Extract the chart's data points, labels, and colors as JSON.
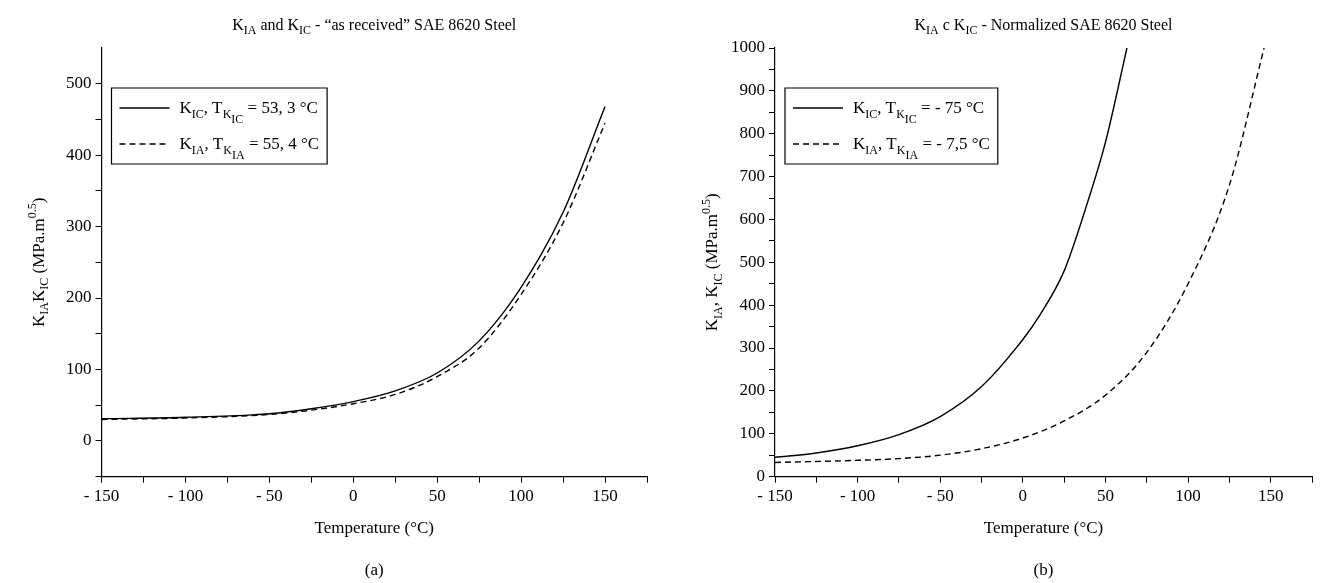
{
  "chart_data": [
    {
      "type": "line",
      "title": "K$_{IA}$ and K$_{IC}$ - “as received” SAE 8620 Steel",
      "xlabel": "Temperature (°C)",
      "ylabel": "K$_{IA}$K$_{IC}$ (MPa.m$^{0.5}$)",
      "annotations": [
        "(a)"
      ],
      "xlim": [
        -150,
        175
      ],
      "ylim": [
        -50,
        550
      ],
      "xticks": [
        {
          "value": -150,
          "label": "- 150"
        },
        {
          "value": -125,
          "label": null
        },
        {
          "value": -100,
          "label": "- 100"
        },
        {
          "value": -75,
          "label": null
        },
        {
          "value": -50,
          "label": "- 50"
        },
        {
          "value": -25,
          "label": null
        },
        0,
        {
          "value": 25,
          "label": null
        },
        50,
        {
          "value": 75,
          "label": null
        },
        100,
        {
          "value": 125,
          "label": null
        },
        150,
        {
          "value": 175,
          "label": null
        }
      ],
      "yticks": [
        {
          "value": -50,
          "label": null
        },
        0,
        {
          "value": 50,
          "label": null
        },
        100,
        {
          "value": 150,
          "label": null
        },
        200,
        {
          "value": 250,
          "label": null
        },
        300,
        {
          "value": 350,
          "label": null
        },
        400,
        {
          "value": 450,
          "label": null
        },
        500
      ],
      "legend": "top left",
      "grid": false,
      "marker": "none",
      "series": [
        {
          "name": "K$_{IC}$, T$_{K}$$_{IC}$ = 53, 3 °C",
          "color": "#000000",
          "line_style": "solid",
          "x": [
            -150,
            -100,
            -50,
            -25,
            0,
            25,
            50,
            75,
            100,
            125,
            150
          ],
          "values": [
            31,
            33,
            38,
            45,
            55,
            70,
            95,
            140,
            215,
            320,
            468
          ]
        },
        {
          "name": "K$_{IA}$, T$_{K}$$_{IA}$ = 55, 4 °C",
          "color": "#000000",
          "line_style": "dashed",
          "x": [
            -150,
            -100,
            -50,
            -25,
            0,
            25,
            50,
            75,
            100,
            125,
            150
          ],
          "values": [
            30,
            32,
            37,
            43,
            52,
            65,
            90,
            130,
            205,
            305,
            445
          ]
        }
      ]
    },
    {
      "type": "line",
      "title": "K$_{IA}$ c K$_{IC}$ - Normalized SAE 8620 Steel",
      "xlabel": "Temperature (°C)",
      "ylabel": "K$_{IA}$, K$_{IC}$ (MPa.m$^{0.5}$)",
      "annotations": [
        "(b)"
      ],
      "xlim": [
        -150,
        175
      ],
      "ylim": [
        0,
        1000
      ],
      "xticks": [
        {
          "value": -150,
          "label": "- 150"
        },
        {
          "value": -125,
          "label": null
        },
        {
          "value": -100,
          "label": "- 100"
        },
        {
          "value": -75,
          "label": null
        },
        {
          "value": -50,
          "label": "- 50"
        },
        {
          "value": -25,
          "label": null
        },
        0,
        {
          "value": 25,
          "label": null
        },
        50,
        {
          "value": 75,
          "label": null
        },
        100,
        {
          "value": 125,
          "label": null
        },
        150,
        {
          "value": 175,
          "label": null
        }
      ],
      "yticks": [
        0,
        {
          "value": 50,
          "label": null
        },
        100,
        {
          "value": 150,
          "label": null
        },
        200,
        {
          "value": 250,
          "label": null
        },
        300,
        {
          "value": 350,
          "label": null
        },
        400,
        {
          "value": 450,
          "label": null
        },
        500,
        {
          "value": 550,
          "label": null
        },
        600,
        {
          "value": 650,
          "label": null
        },
        700,
        {
          "value": 750,
          "label": null
        },
        800,
        {
          "value": 850,
          "label": null
        },
        900,
        {
          "value": 950,
          "label": null
        },
        1000
      ],
      "legend": "top left",
      "grid": false,
      "marker": "none",
      "series": [
        {
          "name": "K$_{IC}$, T$_{K}$$_{IC}$ = - 75 °C",
          "color": "#000000",
          "line_style": "solid",
          "x": [
            -150,
            -125,
            -100,
            -75,
            -50,
            -25,
            0,
            10,
            25,
            40,
            50,
            63
          ],
          "values": [
            45,
            55,
            72,
            98,
            140,
            210,
            320,
            375,
            480,
            650,
            780,
            1000
          ]
        },
        {
          "name": "K$_{IA}$, T$_{K}$$_{IA}$ = - 7,5 °C",
          "color": "#000000",
          "line_style": "dashed",
          "x": [
            -150,
            -100,
            -75,
            -50,
            -25,
            0,
            25,
            50,
            75,
            100,
            125,
            146
          ],
          "values": [
            33,
            38,
            42,
            50,
            65,
            90,
            130,
            190,
            290,
            450,
            680,
            1000
          ]
        }
      ]
    }
  ]
}
